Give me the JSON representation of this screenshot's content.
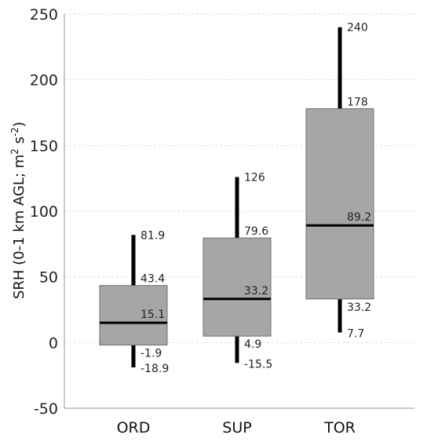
{
  "chart_data": {
    "type": "boxplot",
    "title": "",
    "xlabel": "",
    "ylabel_parts": [
      "SRH (0-1 km AGL; m",
      "2",
      " s",
      "-2",
      ")"
    ],
    "ylim": [
      -50,
      250
    ],
    "yticks": [
      -50,
      0,
      50,
      100,
      150,
      200,
      250
    ],
    "grid": "horizontal dashed",
    "categories": [
      "ORD",
      "SUP",
      "TOR"
    ],
    "boxes": [
      {
        "category": "ORD",
        "min": -18.9,
        "q1": -1.9,
        "median": 15.1,
        "q3": 43.4,
        "max": 81.9,
        "labels": {
          "min": "-18.9",
          "q1": "-1.9",
          "median": "15.1",
          "q3": "43.4",
          "max": "81.9"
        }
      },
      {
        "category": "SUP",
        "min": -15.5,
        "q1": 4.9,
        "median": 33.2,
        "q3": 79.6,
        "max": 126,
        "labels": {
          "min": "-15.5",
          "q1": "4.9",
          "median": "33.2",
          "q3": "79.6",
          "max": "126"
        }
      },
      {
        "category": "TOR",
        "min": 7.7,
        "q1": 33.2,
        "median": 89.2,
        "q3": 178,
        "max": 240,
        "labels": {
          "min": "7.7",
          "q1": "33.2",
          "median": "89.2",
          "q3": "178",
          "max": "240"
        }
      }
    ],
    "colors": {
      "box_fill": "#a6a6a6",
      "box_stroke": "#6f6f6f",
      "whisker": "#000000",
      "median": "#000000",
      "grid": "#dddddd",
      "axis": "#999999"
    }
  }
}
